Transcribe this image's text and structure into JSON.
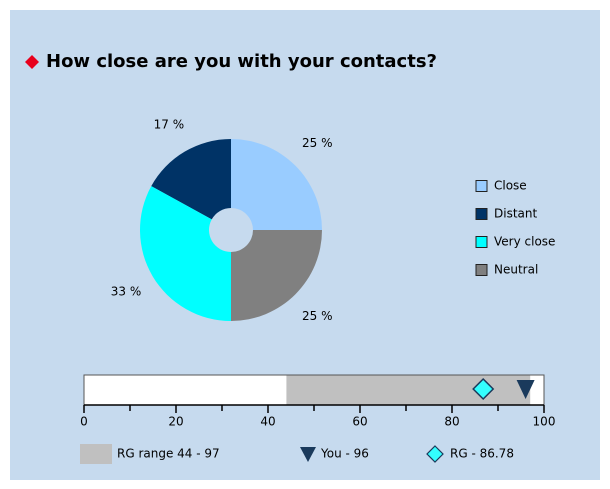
{
  "title": "How close are you with your contacts?",
  "chart_data": [
    {
      "type": "pie",
      "categories": [
        "Close",
        "Distant",
        "Very close",
        "Neutral"
      ],
      "values": [
        25,
        17,
        33,
        25
      ],
      "value_labels": [
        "25 %",
        "17 %",
        "33 %",
        "25 %"
      ],
      "colors": [
        "#99ccff",
        "#003366",
        "#00ffff",
        "#808080"
      ],
      "legend": "right"
    },
    {
      "type": "range",
      "xlim": [
        0,
        100
      ],
      "xticks": [
        0,
        20,
        40,
        60,
        80,
        100
      ],
      "minor_xticks": [
        10,
        30,
        50,
        70,
        90
      ],
      "range": [
        44,
        97
      ],
      "you": 96,
      "rg": 86.78,
      "range_color": "#c0c0c0",
      "you_color": "#1a3a5c",
      "rg_color": "#33ffff",
      "legend": [
        "RG range 44 - 97",
        "You - 96",
        "RG - 86.78"
      ]
    }
  ]
}
